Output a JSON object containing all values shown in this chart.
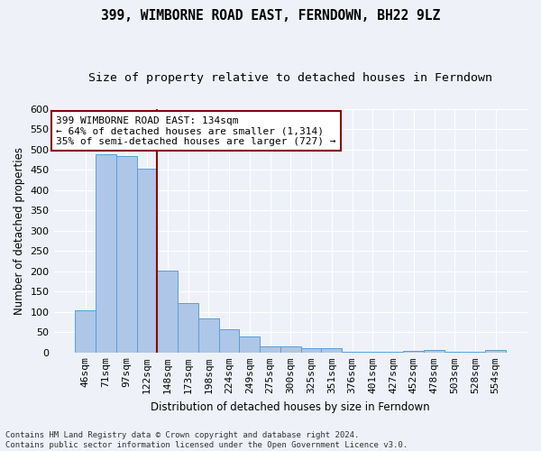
{
  "title": "399, WIMBORNE ROAD EAST, FERNDOWN, BH22 9LZ",
  "subtitle": "Size of property relative to detached houses in Ferndown",
  "xlabel": "Distribution of detached houses by size in Ferndown",
  "ylabel": "Number of detached properties",
  "categories": [
    "46sqm",
    "71sqm",
    "97sqm",
    "122sqm",
    "148sqm",
    "173sqm",
    "198sqm",
    "224sqm",
    "249sqm",
    "275sqm",
    "300sqm",
    "325sqm",
    "351sqm",
    "376sqm",
    "401sqm",
    "427sqm",
    "452sqm",
    "478sqm",
    "503sqm",
    "528sqm",
    "554sqm"
  ],
  "values": [
    105,
    487,
    484,
    453,
    202,
    121,
    83,
    57,
    40,
    15,
    15,
    10,
    10,
    1,
    1,
    1,
    5,
    7,
    1,
    1,
    7
  ],
  "bar_color": "#aec6e8",
  "bar_edge_color": "#5a9fd4",
  "vline_x": 3.5,
  "vline_color": "#8b0000",
  "annotation_text": "399 WIMBORNE ROAD EAST: 134sqm\n← 64% of detached houses are smaller (1,314)\n35% of semi-detached houses are larger (727) →",
  "annotation_box_color": "white",
  "annotation_box_edge": "#8b0000",
  "ylim": [
    0,
    600
  ],
  "yticks": [
    0,
    50,
    100,
    150,
    200,
    250,
    300,
    350,
    400,
    450,
    500,
    550,
    600
  ],
  "footer": "Contains HM Land Registry data © Crown copyright and database right 2024.\nContains public sector information licensed under the Open Government Licence v3.0.",
  "background_color": "#eef2f8",
  "grid_color": "#ffffff",
  "title_fontsize": 10.5,
  "subtitle_fontsize": 9.5,
  "axis_label_fontsize": 8.5,
  "tick_fontsize": 8,
  "annotation_fontsize": 8,
  "footer_fontsize": 6.5
}
